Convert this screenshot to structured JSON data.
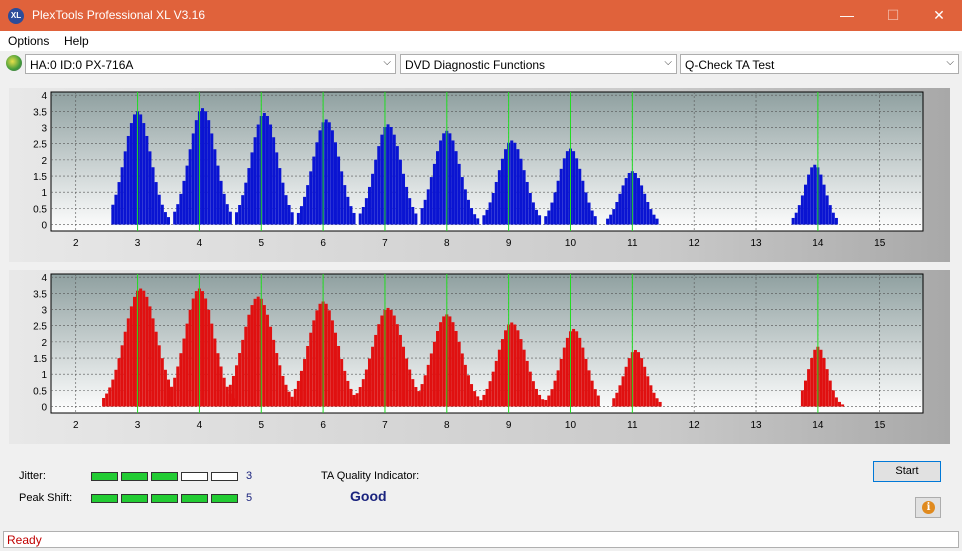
{
  "window": {
    "title": "PlexTools Professional XL V3.16",
    "icon_text": "XL",
    "minimize_glyph": "—",
    "maximize_glyph": "☐",
    "close_glyph": "✕"
  },
  "menu": {
    "items": [
      "Options",
      "Help"
    ]
  },
  "toolbar": {
    "drive": "HA:0 ID:0  PX-716A",
    "function": "DVD Diagnostic Functions",
    "test": "Q-Check TA Test"
  },
  "chart_data": [
    {
      "type": "bar",
      "series_color": "#0a14d2",
      "x_ticks": [
        2,
        3,
        4,
        5,
        6,
        7,
        8,
        9,
        10,
        11,
        12,
        13,
        14,
        15
      ],
      "y_ticks": [
        "0",
        "0.5",
        "1",
        "1.5",
        "2",
        "2.5",
        "3",
        "3.5",
        "4"
      ],
      "xlim": [
        1.6,
        15.7
      ],
      "ylim": [
        -0.2,
        4.1
      ],
      "peak_markers": [
        3,
        4,
        5,
        6,
        7,
        8,
        9,
        10,
        11,
        14
      ],
      "peaks": [
        {
          "center": 3.0,
          "height": 3.5,
          "start": 2.6,
          "end": 3.5
        },
        {
          "center": 4.05,
          "height": 3.6,
          "start": 3.6,
          "end": 4.5
        },
        {
          "center": 5.05,
          "height": 3.45,
          "start": 4.6,
          "end": 5.5
        },
        {
          "center": 6.05,
          "height": 3.25,
          "start": 5.6,
          "end": 6.5
        },
        {
          "center": 7.05,
          "height": 3.1,
          "start": 6.6,
          "end": 7.5
        },
        {
          "center": 8.0,
          "height": 2.9,
          "start": 7.6,
          "end": 8.5
        },
        {
          "center": 9.05,
          "height": 2.6,
          "start": 8.6,
          "end": 9.5
        },
        {
          "center": 10.0,
          "height": 2.35,
          "start": 9.6,
          "end": 10.4
        },
        {
          "center": 11.0,
          "height": 1.65,
          "start": 10.6,
          "end": 11.4
        },
        {
          "center": 13.95,
          "height": 1.85,
          "start": 13.6,
          "end": 14.3
        }
      ]
    },
    {
      "type": "bar",
      "series_color": "#e01010",
      "x_ticks": [
        2,
        3,
        4,
        5,
        6,
        7,
        8,
        9,
        10,
        11,
        12,
        13,
        14,
        15
      ],
      "y_ticks": [
        "0",
        "0.5",
        "1",
        "1.5",
        "2",
        "2.5",
        "3",
        "3.5",
        "4"
      ],
      "xlim": [
        1.6,
        15.7
      ],
      "ylim": [
        -0.2,
        4.1
      ],
      "peak_markers": [
        3,
        4,
        5,
        6,
        7,
        8,
        9,
        10,
        11,
        14
      ],
      "peaks": [
        {
          "center": 3.05,
          "height": 3.65,
          "start": 2.45,
          "end": 3.55
        },
        {
          "center": 4.0,
          "height": 3.65,
          "start": 3.55,
          "end": 4.55
        },
        {
          "center": 4.95,
          "height": 3.4,
          "start": 4.5,
          "end": 5.55
        },
        {
          "center": 6.0,
          "height": 3.25,
          "start": 5.55,
          "end": 6.55
        },
        {
          "center": 7.05,
          "height": 3.05,
          "start": 6.5,
          "end": 7.55
        },
        {
          "center": 8.0,
          "height": 2.85,
          "start": 7.55,
          "end": 8.55
        },
        {
          "center": 9.05,
          "height": 2.6,
          "start": 8.6,
          "end": 9.55
        },
        {
          "center": 10.05,
          "height": 2.4,
          "start": 9.6,
          "end": 10.45
        },
        {
          "center": 11.05,
          "height": 1.75,
          "start": 10.7,
          "end": 11.45
        },
        {
          "center": 14.0,
          "height": 1.85,
          "start": 13.75,
          "end": 14.4
        }
      ]
    }
  ],
  "metrics": {
    "jitter_label": "Jitter:",
    "jitter_value": "3",
    "jitter_level": 3,
    "peak_shift_label": "Peak Shift:",
    "peak_shift_value": "5",
    "peak_shift_level": 5,
    "segments_total": 5,
    "ta_quality_label": "TA Quality Indicator:",
    "ta_quality_value": "Good"
  },
  "buttons": {
    "start": "Start",
    "info_glyph": "i"
  },
  "status": {
    "text": "Ready"
  }
}
